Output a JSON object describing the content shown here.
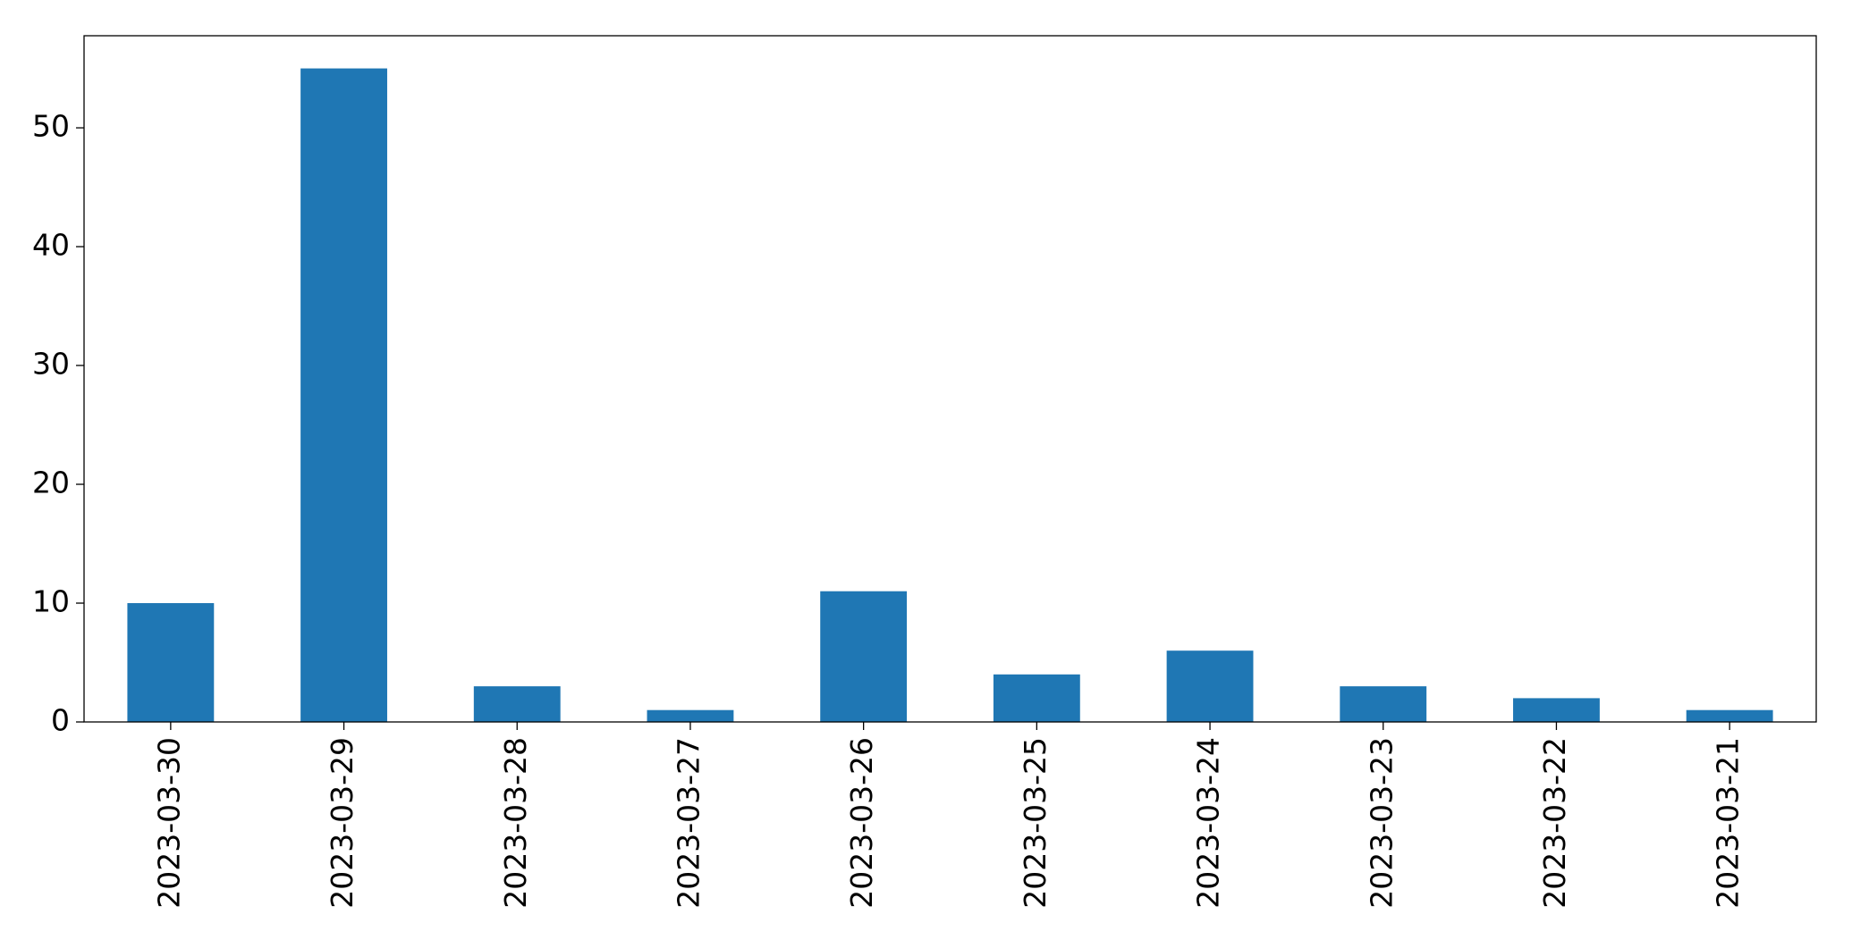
{
  "chart_data": {
    "type": "bar",
    "categories": [
      "2023-03-30",
      "2023-03-29",
      "2023-03-28",
      "2023-03-27",
      "2023-03-26",
      "2023-03-25",
      "2023-03-24",
      "2023-03-23",
      "2023-03-22",
      "2023-03-21"
    ],
    "values": [
      10,
      55,
      3,
      1,
      11,
      4,
      6,
      3,
      2,
      1
    ],
    "color": "#1f77b4",
    "ylim": [
      0,
      57.75
    ],
    "yticks": [
      0,
      10,
      20,
      30,
      40,
      50
    ],
    "grid": false
  }
}
